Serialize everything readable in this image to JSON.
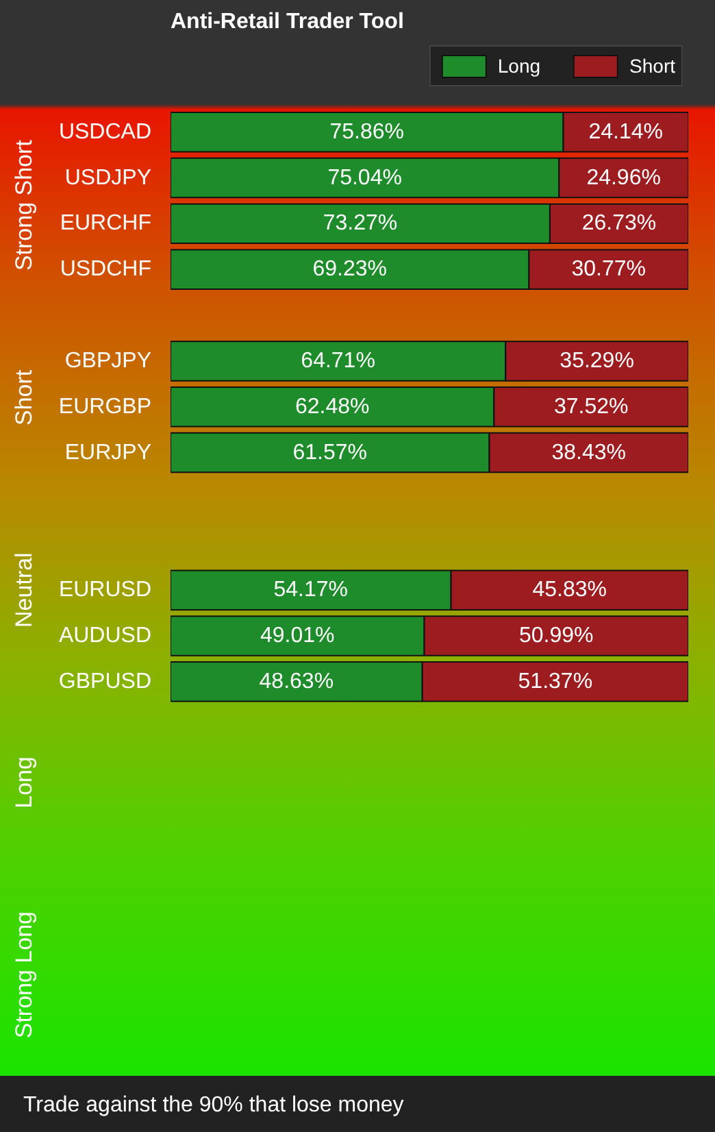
{
  "chart_data": {
    "type": "bar",
    "orientation": "horizontal",
    "stacked": true,
    "title": "Anti-Retail Trader Tool",
    "categories": [
      "USDCAD",
      "USDJPY",
      "EURCHF",
      "USDCHF",
      null,
      "GBPJPY",
      "EURGBP",
      "EURJPY",
      null,
      null,
      "EURUSD",
      "AUDUSD",
      "GBPUSD",
      null,
      null,
      null,
      null,
      null,
      null,
      null,
      null
    ],
    "series": [
      {
        "name": "Long",
        "color": "#1e8c2a",
        "values": [
          75.86,
          75.04,
          73.27,
          69.23,
          null,
          64.71,
          62.48,
          61.57,
          null,
          null,
          54.17,
          49.01,
          48.63,
          null,
          null,
          null,
          null,
          null,
          null,
          null,
          null
        ],
        "value_labels": [
          "75.86%",
          "75.04%",
          "73.27%",
          "69.23%",
          null,
          "64.71%",
          "62.48%",
          "61.57%",
          null,
          null,
          "54.17%",
          "49.01%",
          "48.63%",
          null,
          null,
          null,
          null,
          null,
          null,
          null,
          null
        ]
      },
      {
        "name": "Short",
        "color": "#9c1c20",
        "values": [
          24.14,
          24.96,
          26.73,
          30.77,
          null,
          35.29,
          37.52,
          38.43,
          null,
          null,
          45.83,
          50.99,
          51.37,
          null,
          null,
          null,
          null,
          null,
          null,
          null,
          null
        ],
        "value_labels": [
          "24.14%",
          "24.96%",
          "26.73%",
          "30.77%",
          null,
          "35.29%",
          "37.52%",
          "38.43%",
          null,
          null,
          "45.83%",
          "50.99%",
          "51.37%",
          null,
          null,
          null,
          null,
          null,
          null,
          null,
          null
        ]
      }
    ],
    "annotations": [
      "Strong Short",
      "Short",
      "Neutral",
      "Long",
      "Strong Long",
      "Trade against the 90% that lose money"
    ],
    "legend": "top right",
    "tick_labels": "y",
    "grid": false
  }
}
